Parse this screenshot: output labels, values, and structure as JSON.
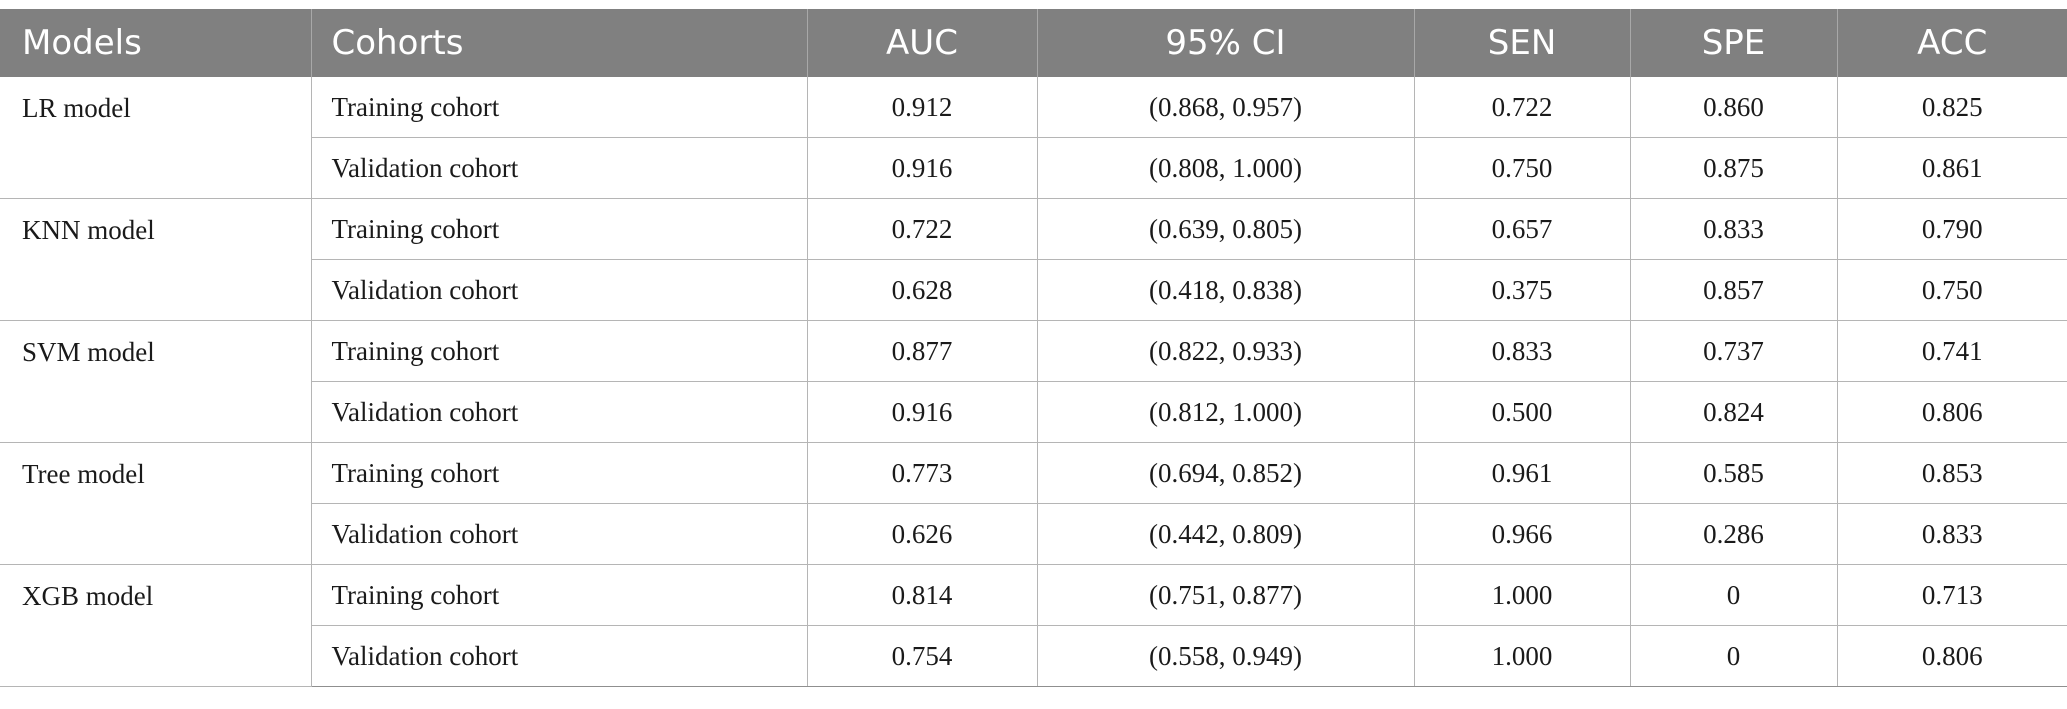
{
  "table": {
    "headers": [
      "Models",
      "Cohorts",
      "AUC",
      "95% CI",
      "SEN",
      "SPE",
      "ACC"
    ],
    "groups": [
      {
        "model": "LR model",
        "rows": [
          {
            "cohort": "Training cohort",
            "auc": "0.912",
            "ci": "(0.868, 0.957)",
            "sen": "0.722",
            "spe": "0.860",
            "acc": "0.825"
          },
          {
            "cohort": "Validation cohort",
            "auc": "0.916",
            "ci": "(0.808, 1.000)",
            "sen": "0.750",
            "spe": "0.875",
            "acc": "0.861"
          }
        ]
      },
      {
        "model": "KNN model",
        "rows": [
          {
            "cohort": "Training cohort",
            "auc": "0.722",
            "ci": "(0.639, 0.805)",
            "sen": "0.657",
            "spe": "0.833",
            "acc": "0.790"
          },
          {
            "cohort": "Validation cohort",
            "auc": "0.628",
            "ci": "(0.418, 0.838)",
            "sen": "0.375",
            "spe": "0.857",
            "acc": "0.750"
          }
        ]
      },
      {
        "model": "SVM model",
        "rows": [
          {
            "cohort": "Training cohort",
            "auc": "0.877",
            "ci": "(0.822, 0.933)",
            "sen": "0.833",
            "spe": "0.737",
            "acc": "0.741"
          },
          {
            "cohort": "Validation cohort",
            "auc": "0.916",
            "ci": "(0.812, 1.000)",
            "sen": "0.500",
            "spe": "0.824",
            "acc": "0.806"
          }
        ]
      },
      {
        "model": "Tree model",
        "rows": [
          {
            "cohort": "Training cohort",
            "auc": "0.773",
            "ci": "(0.694, 0.852)",
            "sen": "0.961",
            "spe": "0.585",
            "acc": "0.853"
          },
          {
            "cohort": "Validation cohort",
            "auc": "0.626",
            "ci": "(0.442, 0.809)",
            "sen": "0.966",
            "spe": "0.286",
            "acc": "0.833"
          }
        ]
      },
      {
        "model": "XGB model",
        "rows": [
          {
            "cohort": "Training cohort",
            "auc": "0.814",
            "ci": "(0.751, 0.877)",
            "sen": "1.000",
            "spe": "0",
            "acc": "0.713"
          },
          {
            "cohort": "Validation cohort",
            "auc": "0.754",
            "ci": "(0.558, 0.949)",
            "sen": "1.000",
            "spe": "0",
            "acc": "0.806"
          }
        ]
      }
    ]
  }
}
